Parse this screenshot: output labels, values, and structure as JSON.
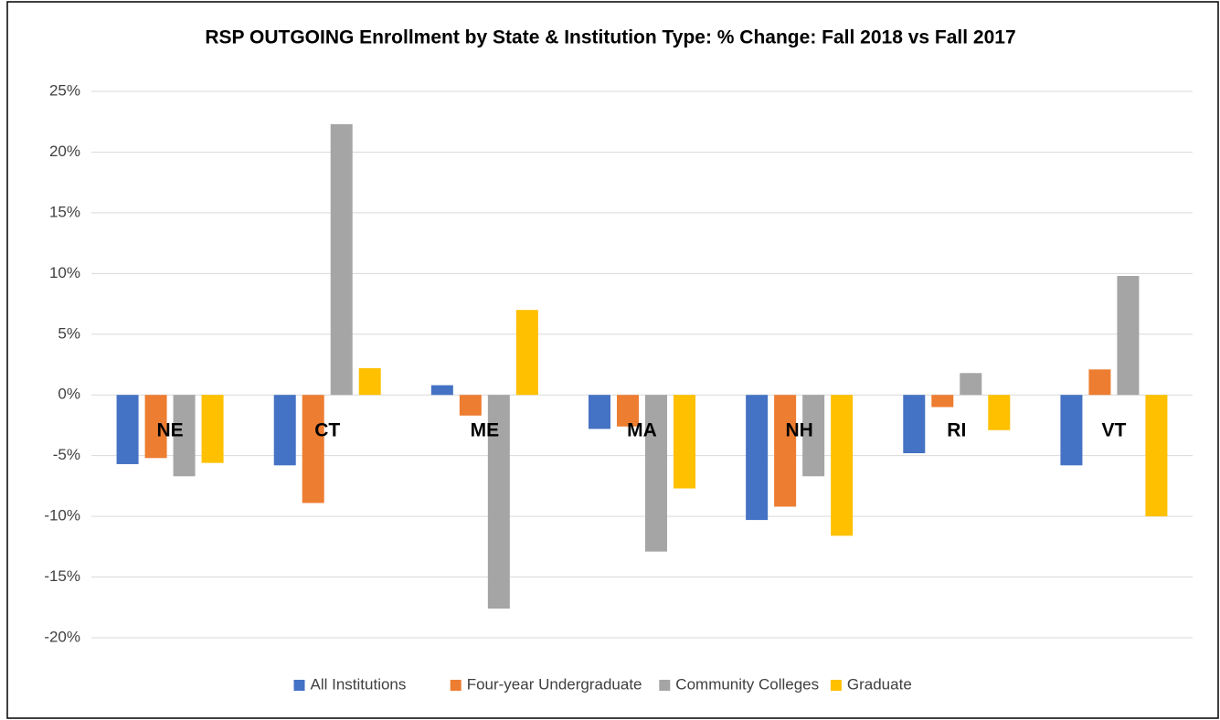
{
  "chart_data": {
    "type": "bar",
    "title": "RSP OUTGOING Enrollment by State & Institution Type: % Change: Fall 2018 vs Fall 2017",
    "categories": [
      "NE",
      "CT",
      "ME",
      "MA",
      "NH",
      "RI",
      "VT"
    ],
    "series": [
      {
        "name": "All Institutions",
        "color": "#4472c4",
        "values": [
          -5.7,
          -5.8,
          0.8,
          -2.8,
          -10.3,
          -4.8,
          -5.8
        ]
      },
      {
        "name": "Four-year Undergraduate",
        "color": "#ed7d31",
        "values": [
          -5.2,
          -8.9,
          -1.7,
          -2.6,
          -9.2,
          -1.0,
          2.1
        ]
      },
      {
        "name": "Community Colleges",
        "color": "#a5a5a5",
        "values": [
          -6.7,
          22.3,
          -17.6,
          -12.9,
          -6.7,
          1.8,
          9.8
        ]
      },
      {
        "name": "Graduate",
        "color": "#ffc000",
        "values": [
          -5.6,
          2.2,
          7.0,
          -7.7,
          -11.6,
          -2.9,
          -10.0
        ]
      }
    ],
    "ylim": [
      -20,
      25
    ],
    "yticks": [
      {
        "value": -20,
        "label": "-20%"
      },
      {
        "value": -15,
        "label": "-15%"
      },
      {
        "value": -10,
        "label": "-10%"
      },
      {
        "value": -5,
        "label": "-5%"
      },
      {
        "value": 0,
        "label": "0%"
      },
      {
        "value": 5,
        "label": "5%"
      },
      {
        "value": 10,
        "label": "10%"
      },
      {
        "value": 15,
        "label": "15%"
      },
      {
        "value": 20,
        "label": "20%"
      },
      {
        "value": 25,
        "label": "25%"
      }
    ],
    "grid": true,
    "legend": "bottom"
  }
}
